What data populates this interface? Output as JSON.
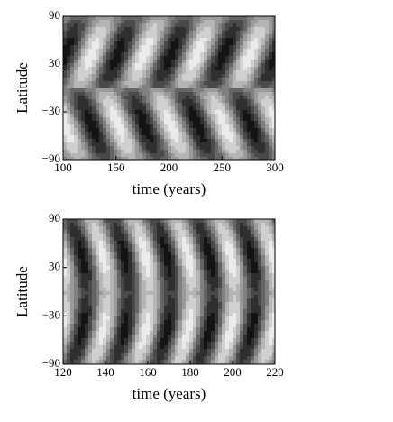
{
  "chart_data": [
    {
      "type": "contour",
      "xlabel": "time (years)",
      "ylabel": "Latitude",
      "xlim": [
        100,
        300
      ],
      "xticks": [
        100,
        150,
        200,
        250,
        300
      ],
      "ylim": [
        -90,
        90
      ],
      "yticks": [
        {
          "value": -90,
          "label": "−90"
        },
        {
          "value": -30,
          "label": "−30"
        },
        30,
        90
      ]
    },
    {
      "type": "contour",
      "xlabel": "time (years)",
      "ylabel": "Latitude",
      "xlim": [
        120,
        220
      ],
      "xticks": [
        120,
        140,
        160,
        180,
        200,
        220
      ],
      "ylim": [
        -90,
        90
      ],
      "yticks": [
        {
          "value": -90,
          "label": "−90"
        },
        {
          "value": -30,
          "label": "−30"
        },
        30,
        90
      ]
    }
  ]
}
